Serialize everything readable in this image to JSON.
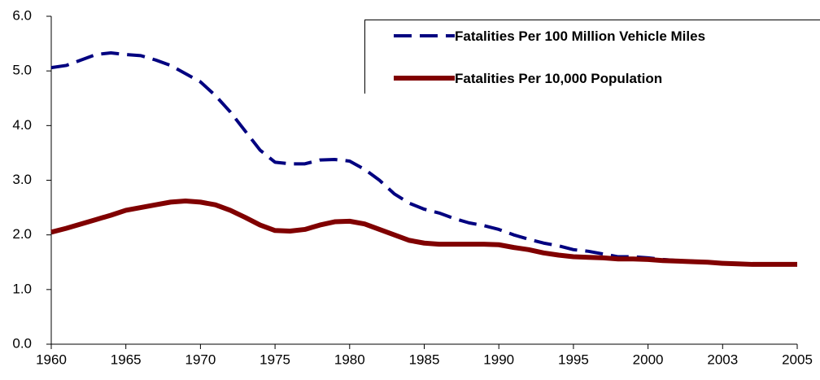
{
  "chart_data": {
    "type": "line",
    "categories": [
      "1960",
      null,
      null,
      null,
      null,
      "1965",
      null,
      null,
      null,
      null,
      "1970",
      null,
      null,
      null,
      null,
      "1975",
      null,
      null,
      null,
      null,
      "1980",
      null,
      null,
      null,
      null,
      "1985",
      null,
      null,
      null,
      null,
      "1990",
      null,
      null,
      null,
      null,
      "1995",
      null,
      null,
      null,
      null,
      "2000",
      null,
      null,
      null,
      null,
      "2003",
      null,
      null,
      null,
      null,
      "2005"
    ],
    "series": [
      {
        "name": "Fatalities Per 100 Million Vehicle Miles",
        "color": "#000080",
        "dash": true,
        "values": [
          5.06,
          5.1,
          5.2,
          5.3,
          5.33,
          5.3,
          5.28,
          5.2,
          5.1,
          4.95,
          4.8,
          4.55,
          4.25,
          3.9,
          3.55,
          3.33,
          3.3,
          3.3,
          3.37,
          3.38,
          3.35,
          3.2,
          3.0,
          2.75,
          2.58,
          2.47,
          2.4,
          2.3,
          2.22,
          2.17,
          2.1,
          2.0,
          1.92,
          1.85,
          1.8,
          1.73,
          1.7,
          1.65,
          1.6,
          1.6,
          1.58,
          1.55,
          1.53,
          1.52,
          1.5,
          1.48,
          1.47,
          1.46,
          1.46,
          1.46,
          1.46
        ]
      },
      {
        "name": "Fatalities Per 10,000 Population",
        "color": "#800000",
        "dash": false,
        "values": [
          2.05,
          2.12,
          2.2,
          2.28,
          2.36,
          2.45,
          2.5,
          2.55,
          2.6,
          2.62,
          2.6,
          2.55,
          2.45,
          2.32,
          2.18,
          2.08,
          2.07,
          2.1,
          2.18,
          2.24,
          2.25,
          2.2,
          2.1,
          2.0,
          1.9,
          1.85,
          1.83,
          1.83,
          1.83,
          1.83,
          1.82,
          1.77,
          1.73,
          1.67,
          1.63,
          1.6,
          1.59,
          1.58,
          1.56,
          1.56,
          1.55,
          1.53,
          1.52,
          1.51,
          1.5,
          1.48,
          1.47,
          1.46,
          1.46,
          1.46,
          1.46
        ]
      }
    ],
    "ylim": [
      0,
      6
    ],
    "yticks": [
      {
        "value": 0,
        "label": "0.0"
      },
      {
        "value": 1,
        "label": "1.0"
      },
      {
        "value": 2,
        "label": "2.0"
      },
      {
        "value": 3,
        "label": "3.0"
      },
      {
        "value": 4,
        "label": "4.0"
      },
      {
        "value": 5,
        "label": "5.0"
      },
      {
        "value": 6,
        "label": "6.0"
      }
    ]
  }
}
